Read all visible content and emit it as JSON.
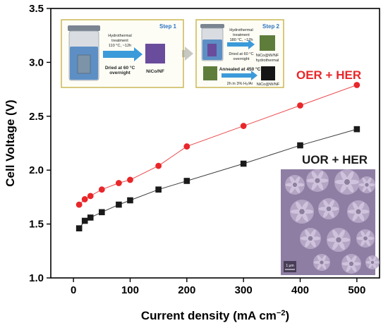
{
  "chart_data": {
    "type": "line",
    "xlabel": "Current density (mA cm",
    "xlabel_sup": "−2",
    "xlabel_close": ")",
    "ylabel": "Cell Voltage (V)",
    "xlim": [
      -40,
      540
    ],
    "ylim": [
      1.0,
      3.5
    ],
    "x_ticks": [
      0,
      100,
      200,
      300,
      400,
      500
    ],
    "y_ticks": [
      1.0,
      1.5,
      2.0,
      2.5,
      3.0,
      3.5
    ],
    "y_tick_labels": [
      "1.0",
      "1.5",
      "2.0",
      "2.5",
      "3.0",
      "3.5"
    ],
    "grid": false,
    "series": [
      {
        "name": "OER + HER",
        "color": "#e8272a",
        "marker": "circle",
        "x": [
          10,
          20,
          30,
          50,
          80,
          100,
          150,
          200,
          300,
          400,
          500
        ],
        "y": [
          1.68,
          1.73,
          1.76,
          1.82,
          1.88,
          1.91,
          2.04,
          2.22,
          2.41,
          2.6,
          2.79
        ]
      },
      {
        "name": "UOR + HER",
        "color": "#1a1a1a",
        "marker": "square",
        "x": [
          10,
          20,
          30,
          50,
          80,
          100,
          150,
          200,
          300,
          400,
          500
        ],
        "y": [
          1.46,
          1.53,
          1.56,
          1.61,
          1.68,
          1.72,
          1.82,
          1.9,
          2.06,
          2.23,
          2.38
        ]
      }
    ]
  },
  "inset": {
    "step1": {
      "title": "Step 1",
      "arrow_text_top": "Hydrothermal\ntreatment\n110 °C, ~12h",
      "arrow_text_bottom": "Dried at 60 °C\novernight",
      "product": "NiCo/NF"
    },
    "step2": {
      "title": "Step 2",
      "arrow_text_top": "Hydrothermal\ntreatment\n180 °C, ~12h",
      "arrow_text_bottom": "Dried at 60 °C\novernight",
      "product_top": "NiCo@W/NF\nhydrothermal",
      "anneal_top": "Annealed at 450 °C",
      "anneal_bottom": "2h in 3% H₂/Ar",
      "product_bottom": "NiCo@W/NF"
    },
    "sem_scale": "1 μm",
    "colors": {
      "panel_border": "#c9b24a",
      "arrow": "#3b9ad9",
      "sem": "#8e7ea3"
    }
  }
}
